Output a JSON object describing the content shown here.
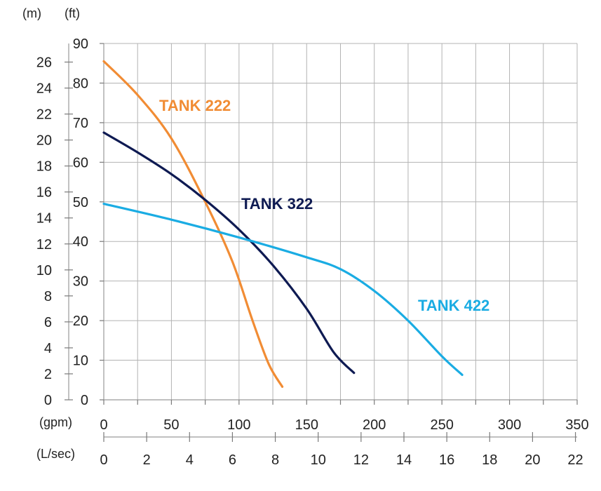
{
  "chart_data": {
    "type": "line",
    "grid": true,
    "units": {
      "left_meters": "(m)",
      "left_feet": "(ft)",
      "bottom_gpm": "(gpm)",
      "bottom_lsec": "(L/sec)"
    },
    "x_axis_gpm": {
      "range": [
        0,
        350
      ],
      "ticks": [
        "0",
        "50",
        "100",
        "150",
        "200",
        "250",
        "300",
        "350"
      ]
    },
    "x_axis_lsec": {
      "range": [
        0,
        22.08
      ],
      "ticks": [
        "0",
        "2",
        "4",
        "6",
        "8",
        "10",
        "12",
        "14",
        "16",
        "18",
        "20",
        "22"
      ]
    },
    "y_axis_feet": {
      "range": [
        0,
        90
      ],
      "ticks": [
        "0",
        "10",
        "20",
        "30",
        "40",
        "50",
        "60",
        "70",
        "80",
        "90"
      ]
    },
    "y_axis_meters": {
      "range": [
        0,
        27.43
      ],
      "ticks": [
        "0",
        "2",
        "4",
        "6",
        "8",
        "10",
        "12",
        "14",
        "16",
        "18",
        "20",
        "22",
        "24",
        "26"
      ]
    },
    "series": [
      {
        "name": "TANK 222",
        "color": "#f18c34",
        "x": [
          0,
          25,
          50,
          75,
          95,
          110,
          122,
          132
        ],
        "y": [
          85.5,
          77,
          66,
          50,
          35,
          20,
          9,
          3.3
        ]
      },
      {
        "name": "TANK 322",
        "color": "#0e1a52",
        "x": [
          0,
          25,
          50,
          75,
          100,
          125,
          150,
          170,
          185
        ],
        "y": [
          67.5,
          62.5,
          57,
          50.5,
          43,
          34,
          23,
          12,
          6.8
        ]
      },
      {
        "name": "TANK 422",
        "color": "#1aace3",
        "x": [
          0,
          50,
          100,
          150,
          175,
          200,
          225,
          250,
          265
        ],
        "y": [
          49.5,
          45.5,
          41,
          36,
          33,
          27.5,
          20,
          11,
          6.3
        ]
      }
    ]
  }
}
